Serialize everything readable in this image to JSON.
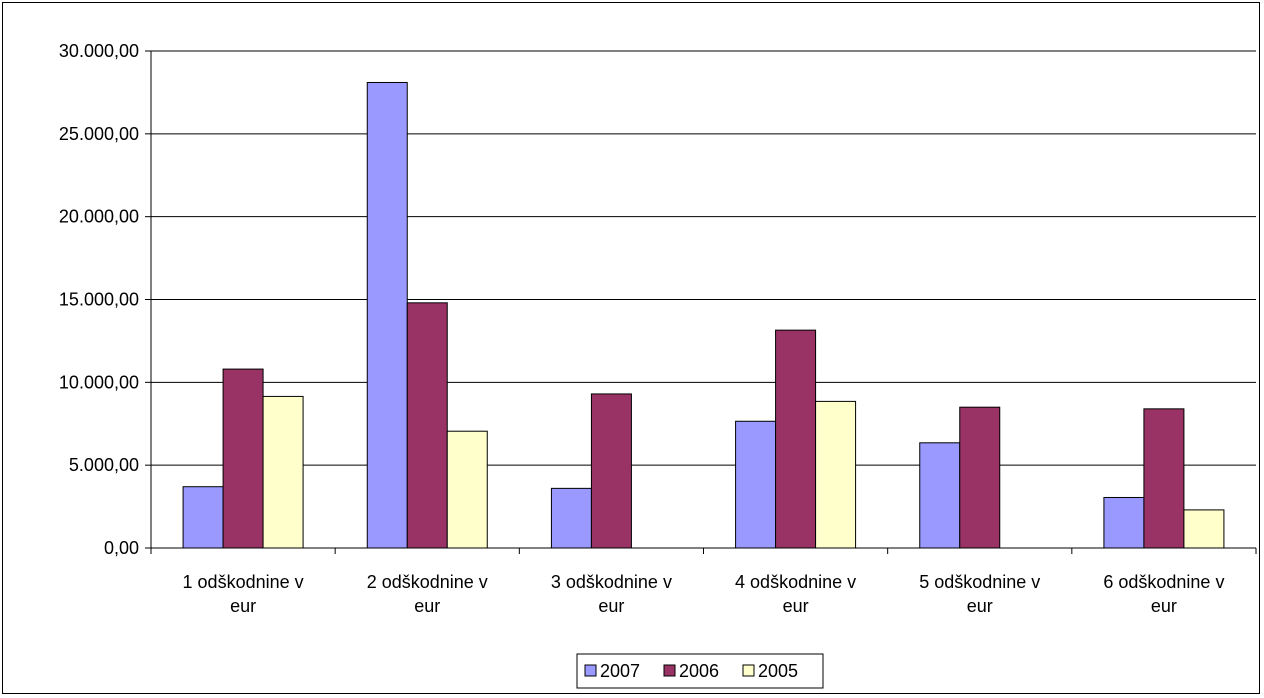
{
  "chart_data": {
    "type": "bar",
    "categories": [
      [
        "1 odškodnine v",
        "eur"
      ],
      [
        "2 odškodnine v",
        "eur"
      ],
      [
        "3 odškodnine v",
        "eur"
      ],
      [
        "4 odškodnine v",
        "eur"
      ],
      [
        "5 odškodnine v",
        "eur"
      ],
      [
        "6 odškodnine v",
        "eur"
      ]
    ],
    "series": [
      {
        "name": "2007",
        "color": "#9999ff",
        "values": [
          3700,
          28100,
          3600,
          7650,
          6350,
          3050
        ]
      },
      {
        "name": "2006",
        "color": "#993366",
        "values": [
          10800,
          14800,
          9300,
          13150,
          8500,
          8400
        ]
      },
      {
        "name": "2005",
        "color": "#ffffcc",
        "values": [
          9150,
          7050,
          0,
          8850,
          0,
          2300
        ]
      }
    ],
    "yticks": [
      "0,00",
      "5.000,00",
      "10.000,00",
      "15.000,00",
      "20.000,00",
      "25.000,00",
      "30.000,00"
    ],
    "ylim": [
      0,
      30000
    ],
    "grid": true,
    "legend_position": "bottom"
  }
}
